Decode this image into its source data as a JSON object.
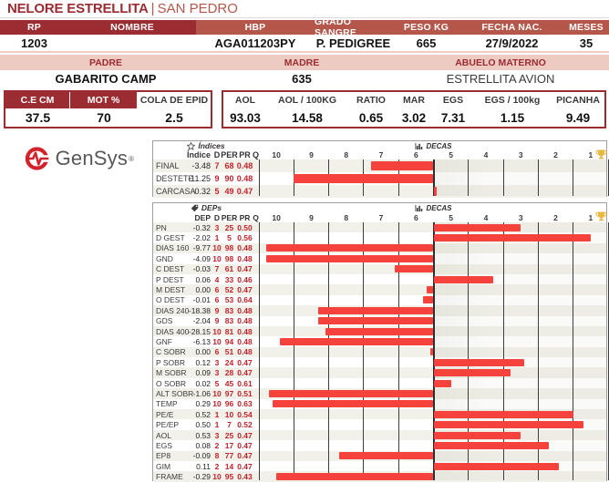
{
  "colors": {
    "dark_red": "#9b2c31",
    "brick": "#b4574a",
    "pink": "#edcac2",
    "bar_red": "#f5423d",
    "stripe": "#f2f1e9",
    "red_text": "#c1232b",
    "gold": "#e9b93d",
    "gridline": "#3d3d3d"
  },
  "title": {
    "main": "NELORE ESTRELLITA",
    "separator": "|",
    "sub": "SAN PEDRO"
  },
  "animal": {
    "headers": [
      "RP",
      "NOMBRE",
      "HBP",
      "GRADO SANGRE",
      "PESO KG",
      "FECHA NAC.",
      "MESES"
    ],
    "values": [
      "1203",
      "",
      "AGA011203PY",
      "P. PEDIGREE",
      "665",
      "27/9/2022",
      "35"
    ]
  },
  "pedigree": {
    "headers": [
      "PADRE",
      "MADRE",
      "ABUELO MATERNO"
    ],
    "values": [
      "GABARITO CAMP",
      "635",
      "ESTRELLITA AVION"
    ]
  },
  "semen_box": {
    "headers": [
      "C.E CM",
      "MOT %",
      "COLA DE EPID"
    ],
    "values": [
      "37.5",
      "70",
      "2.5"
    ]
  },
  "carcass_box": {
    "headers": [
      "AOL",
      "AOL / 100KG",
      "RATIO",
      "MAR",
      "EGS",
      "EGS / 100kg",
      "PICANHA"
    ],
    "values": [
      "93.03",
      "14.58",
      "0.65",
      "3.02",
      "7.31",
      "1.15",
      "9.49"
    ]
  },
  "logo": {
    "brand": "GenSys",
    "registered": "®"
  },
  "charts_common": {
    "decas_label": "DECAS",
    "chart_icon": "bar-chart-icon",
    "trophy_icon": "trophy-icon",
    "scale": [
      "10",
      "9",
      "8",
      "7",
      "6",
      "5",
      "4",
      "3",
      "2",
      "1"
    ],
    "baseline": 5.5
  },
  "indices_panel": {
    "icon": "star-icon",
    "title": "Índices",
    "columns": [
      "Índice",
      "D",
      "PER",
      "PR",
      "Q"
    ],
    "rows": [
      {
        "label": "FINAL",
        "value": "-3.48",
        "d": "7",
        "per": "68",
        "pr": "0.48"
      },
      {
        "label": "DESTETE",
        "value": "-11.25",
        "d": "9",
        "per": "90",
        "pr": "0.48"
      },
      {
        "label": "CARCASA",
        "value": "0.32",
        "d": "5",
        "per": "49",
        "pr": "0.47"
      }
    ]
  },
  "deps_panel": {
    "icon": "tag-icon",
    "title": "DEPs",
    "columns": [
      "DEP",
      "D",
      "PER",
      "PR",
      "Q"
    ],
    "rows": [
      {
        "label": "PN",
        "value": "-0.32",
        "d": "3",
        "per": "25",
        "pr": "0.50"
      },
      {
        "label": "D GEST",
        "value": "-2.02",
        "d": "1",
        "per": "5",
        "pr": "0.56"
      },
      {
        "label": "DIAS 160",
        "value": "-9.77",
        "d": "10",
        "per": "98",
        "pr": "0.48"
      },
      {
        "label": "GND",
        "value": "-4.09",
        "d": "10",
        "per": "98",
        "pr": "0.48"
      },
      {
        "label": "C DEST",
        "value": "-0.03",
        "d": "7",
        "per": "61",
        "pr": "0.47"
      },
      {
        "label": "P DEST",
        "value": "0.06",
        "d": "4",
        "per": "33",
        "pr": "0.46"
      },
      {
        "label": "M DEST",
        "value": "0.00",
        "d": "6",
        "per": "52",
        "pr": "0.47"
      },
      {
        "label": "O DEST",
        "value": "-0.01",
        "d": "6",
        "per": "53",
        "pr": "0.64"
      },
      {
        "label": "DIAS 240",
        "value": "-18.38",
        "d": "9",
        "per": "83",
        "pr": "0.48"
      },
      {
        "label": "GDS",
        "value": "-2.04",
        "d": "9",
        "per": "83",
        "pr": "0.48"
      },
      {
        "label": "DIAS 400",
        "value": "-28.15",
        "d": "10",
        "per": "81",
        "pr": "0.48"
      },
      {
        "label": "GNF",
        "value": "-6.13",
        "d": "10",
        "per": "94",
        "pr": "0.48"
      },
      {
        "label": "C SOBR",
        "value": "0.00",
        "d": "6",
        "per": "51",
        "pr": "0.48"
      },
      {
        "label": "P SOBR",
        "value": "0.12",
        "d": "3",
        "per": "24",
        "pr": "0.47"
      },
      {
        "label": "M SOBR",
        "value": "0.09",
        "d": "3",
        "per": "28",
        "pr": "0.47"
      },
      {
        "label": "O SOBR",
        "value": "0.02",
        "d": "5",
        "per": "45",
        "pr": "0.61"
      },
      {
        "label": "ALT SOBR",
        "value": "-1.06",
        "d": "10",
        "per": "97",
        "pr": "0.51"
      },
      {
        "label": "TEMP",
        "value": "0.29",
        "d": "10",
        "per": "96",
        "pr": "0.63"
      },
      {
        "label": "PE/E",
        "value": "0.52",
        "d": "1",
        "per": "10",
        "pr": "0.54"
      },
      {
        "label": "PE/EP",
        "value": "0.50",
        "d": "1",
        "per": "7",
        "pr": "0.52"
      },
      {
        "label": "AOL",
        "value": "0.53",
        "d": "3",
        "per": "25",
        "pr": "0.47"
      },
      {
        "label": "EGS",
        "value": "0.08",
        "d": "2",
        "per": "17",
        "pr": "0.47"
      },
      {
        "label": "EP8",
        "value": "-0.09",
        "d": "8",
        "per": "77",
        "pr": "0.47"
      },
      {
        "label": "GIM",
        "value": "0.11",
        "d": "2",
        "per": "14",
        "pr": "0.47"
      },
      {
        "label": "FRAME",
        "value": "-0.29",
        "d": "10",
        "per": "95",
        "pr": "0.43"
      }
    ]
  },
  "chart_data": [
    {
      "type": "bar",
      "title": "Índices DECAS",
      "orientation": "horizontal",
      "xlabel": "DECAS",
      "axis_scale": [
        10,
        9,
        8,
        7,
        6,
        5,
        4,
        3,
        2,
        1
      ],
      "baseline": 5.5,
      "note": "bars span from baseline 5.5 to PER/10+0.5 on a 10(left)-to-1(right) scale",
      "categories": [
        "FINAL",
        "DESTETE",
        "CARCASA"
      ],
      "series": [
        {
          "name": "DECA (D)",
          "values": [
            7,
            9,
            5
          ]
        },
        {
          "name": "PER percentile",
          "values": [
            68,
            90,
            49
          ]
        },
        {
          "name": "bar endpoint deca",
          "values": [
            7.3,
            9.5,
            5.4
          ]
        }
      ]
    },
    {
      "type": "bar",
      "title": "DEPs DECAS",
      "orientation": "horizontal",
      "xlabel": "DECAS",
      "axis_scale": [
        10,
        9,
        8,
        7,
        6,
        5,
        4,
        3,
        2,
        1
      ],
      "baseline": 5.5,
      "categories": [
        "PN",
        "D GEST",
        "DIAS 160",
        "GND",
        "C DEST",
        "P DEST",
        "M DEST",
        "O DEST",
        "DIAS 240",
        "GDS",
        "DIAS 400",
        "GNF",
        "C SOBR",
        "P SOBR",
        "M SOBR",
        "O SOBR",
        "ALT SOBR",
        "TEMP",
        "PE/E",
        "PE/EP",
        "AOL",
        "EGS",
        "EP8",
        "GIM",
        "FRAME"
      ],
      "series": [
        {
          "name": "DECA (D)",
          "values": [
            3,
            1,
            10,
            10,
            7,
            4,
            6,
            6,
            9,
            9,
            10,
            10,
            6,
            3,
            3,
            5,
            10,
            10,
            1,
            1,
            3,
            2,
            8,
            2,
            10
          ]
        },
        {
          "name": "PER percentile",
          "values": [
            25,
            5,
            98,
            98,
            61,
            33,
            52,
            53,
            83,
            83,
            81,
            94,
            51,
            24,
            28,
            45,
            97,
            96,
            10,
            7,
            25,
            17,
            77,
            14,
            95
          ]
        },
        {
          "name": "bar endpoint deca",
          "values": [
            3.0,
            1.0,
            10.3,
            10.3,
            6.6,
            3.8,
            5.7,
            5.8,
            8.8,
            8.8,
            8.6,
            9.9,
            5.6,
            2.9,
            3.3,
            5.0,
            10.2,
            10.1,
            1.5,
            1.2,
            3.0,
            2.2,
            8.2,
            1.9,
            10.0
          ]
        }
      ]
    }
  ]
}
